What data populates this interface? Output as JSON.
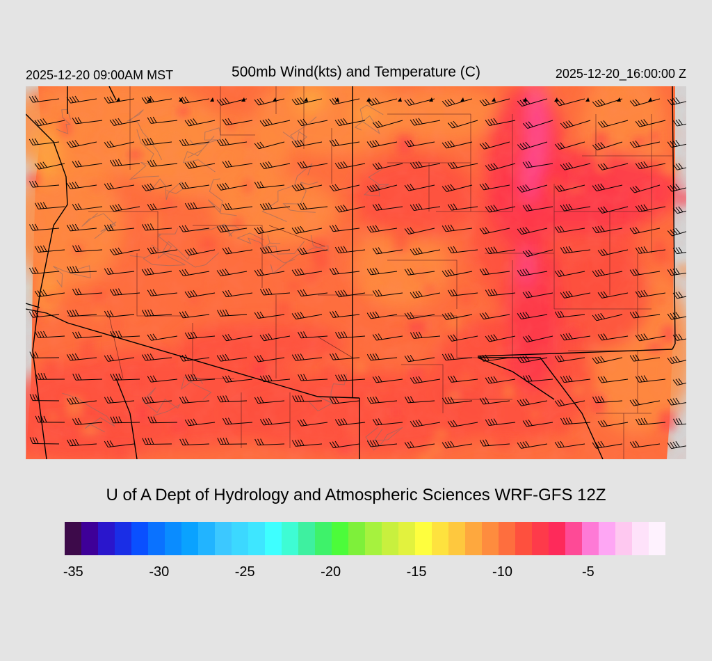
{
  "header": {
    "valid_local": "2025-12-20 09:00AM MST",
    "title": "500mb Wind(kts) and Temperature (C)",
    "valid_utc": "2025-12-20_16:00:00 Z"
  },
  "footer": {
    "credit": "U of A Dept of Hydrology and Atmospheric Sciences WRF-GFS 12Z"
  },
  "legend": {
    "colors": [
      "#3d0a4a",
      "#3e0098",
      "#2a16cc",
      "#1a2ee6",
      "#0a50ff",
      "#0a72ff",
      "#0a8cff",
      "#0aa2ff",
      "#22b4ff",
      "#3cc8ff",
      "#3cd8ff",
      "#3ee6ff",
      "#3effff",
      "#3efcd4",
      "#3ef0a0",
      "#3ef26a",
      "#4cfc3a",
      "#7ef03a",
      "#a6f23e",
      "#c8f03e",
      "#e2f23e",
      "#fefe3e",
      "#fee23e",
      "#fec83e",
      "#fea83e",
      "#fe8c3e",
      "#fe6e3e",
      "#fe503e",
      "#fe3a4a",
      "#fe2a5a",
      "#fe4a96",
      "#fe7ad6",
      "#fea6f4",
      "#fec8f0",
      "#fee2fa",
      "#fef2fe"
    ],
    "ticks": [
      {
        "label": "-35",
        "value": -35
      },
      {
        "label": "-30",
        "value": -30
      },
      {
        "label": "-25",
        "value": -25
      },
      {
        "label": "-20",
        "value": -20
      },
      {
        "label": "-15",
        "value": -15
      },
      {
        "label": "-10",
        "value": -10
      },
      {
        "label": "-5",
        "value": -5
      }
    ],
    "min": -35.5,
    "max": -0.5
  },
  "map": {
    "field_colors": {
      "base": "#fe6e3e",
      "warm_orange": "#fe8c3e",
      "hot_red": "#fe503e",
      "red_pink": "#fe3a4a",
      "pink": "#fe4a96",
      "yellow": "#fea83e",
      "no_data": "#d4d4d4"
    }
  }
}
